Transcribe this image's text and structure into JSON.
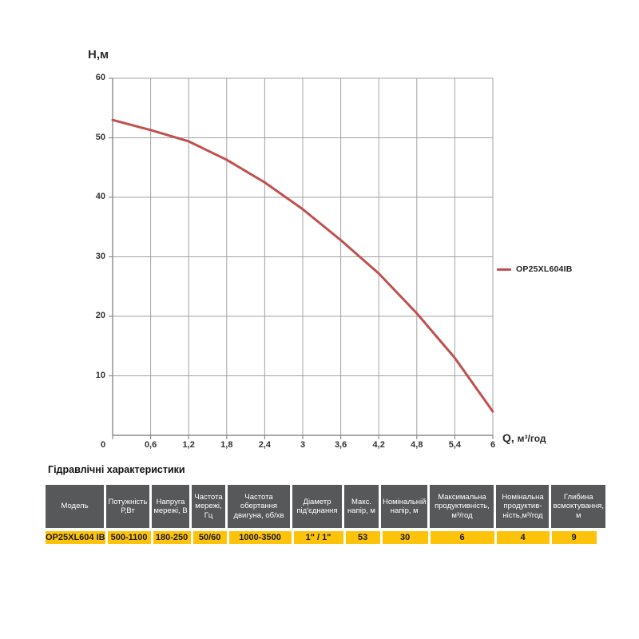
{
  "chart": {
    "y_axis_title": "Н,м",
    "x_axis_symbol": "Q,",
    "x_axis_unit": "м³/год",
    "legend": {
      "label": "OP25XL604IB",
      "color": "#c0504d"
    }
  },
  "chart_data": {
    "type": "line",
    "title": "",
    "xlabel": "Q, м³/год",
    "ylabel": "Н,м",
    "xlim": [
      0,
      6
    ],
    "ylim": [
      0,
      60
    ],
    "grid": true,
    "legend_position": "right-middle",
    "x_tick_labels": [
      "0",
      "0,6",
      "1,2",
      "1,8",
      "2,4",
      "3",
      "3,6",
      "4,2",
      "4,8",
      "5,4",
      "6"
    ],
    "y_ticks": [
      60,
      50,
      40,
      30,
      20,
      10
    ],
    "series": [
      {
        "name": "OP25XL604IB",
        "color": "#c0504d",
        "x": [
          0,
          0.6,
          1.2,
          1.8,
          2.4,
          3,
          3.6,
          4.2,
          4.8,
          5.4,
          6
        ],
        "y": [
          53,
          51.3,
          49.4,
          46.3,
          42.5,
          38,
          32.8,
          27.2,
          20.5,
          13,
          4
        ]
      }
    ]
  },
  "table": {
    "title": "Гідравлічні характеристики",
    "header_bg": "#57585a",
    "row_bg": "#fdc30a",
    "headers": [
      "Модель",
      "Потужність Р,Вт",
      "Напруга мережі, В",
      "Частота мережі, Гц",
      "Частота обертання двигуна, об/хв",
      "Діаметр під'єднання",
      "Макс. напір, м",
      "Номінальній напір, м",
      "Максимальна продуктивність, м³/год",
      "Номінальна продуктив-ність,м³/год",
      "Глибина всмоктування, м"
    ],
    "rows": [
      [
        "OP25XL604 IB",
        "500-1100",
        "180-250",
        "50/60",
        "1000-3500",
        "1\" / 1\"",
        "53",
        "30",
        "6",
        "4",
        "9"
      ]
    ]
  }
}
